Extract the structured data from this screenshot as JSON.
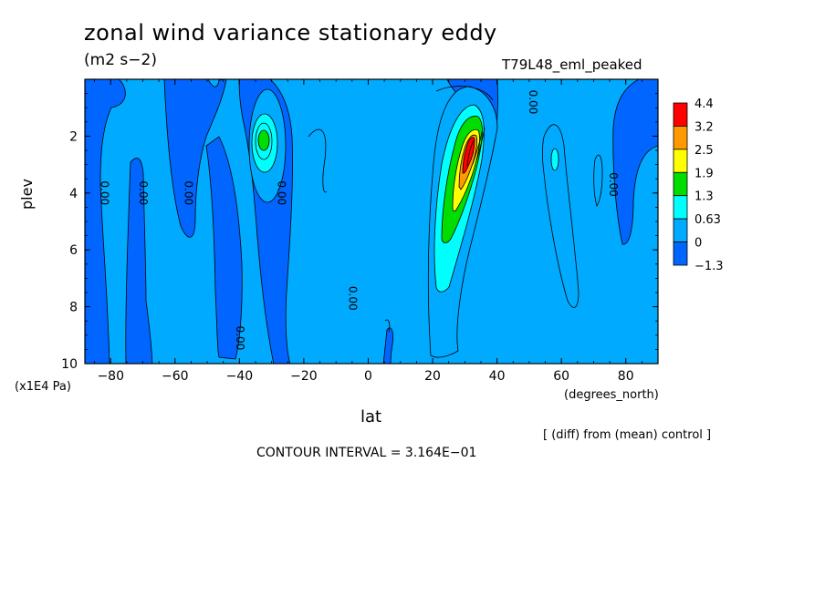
{
  "chart_data": {
    "type": "heatmap",
    "subtype": "filled-contour",
    "title": "zonal wind variance stationary eddy",
    "units": "(m2 s−2)",
    "run_name": "T79L48_eml_peaked",
    "xlabel": "lat",
    "x_units": "(degrees_north)",
    "ylabel": "plev",
    "y_units": "(x1E4 Pa)",
    "xlim": [
      -88,
      90
    ],
    "ylim": [
      10,
      0
    ],
    "x_ticks": [
      -80,
      -60,
      -40,
      -20,
      0,
      20,
      40,
      60,
      80
    ],
    "x_tick_labels": [
      "−80",
      "−60",
      "−40",
      "−20",
      "0",
      "20",
      "40",
      "60",
      "80"
    ],
    "y_ticks": [
      2,
      4,
      6,
      8,
      10
    ],
    "y_tick_labels": [
      "2",
      "4",
      "6",
      "8",
      "10"
    ],
    "colorbar": {
      "levels": [
        "4.4",
        "3.2",
        "2.5",
        "1.9",
        "1.3",
        "0.63",
        "0",
        "−1.3"
      ],
      "colors": [
        "#ff0000",
        "#ff9900",
        "#ffff00",
        "#00dd00",
        "#00ffff",
        "#00aaff",
        "#0066ff"
      ]
    },
    "contour_labels": [
      {
        "text": "0.00",
        "lat": -83,
        "plev": 4.0
      },
      {
        "text": "0.00",
        "lat": -71,
        "plev": 4.0
      },
      {
        "text": "0.00",
        "lat": -57,
        "plev": 4.0
      },
      {
        "text": "0.00",
        "lat": -28,
        "plev": 4.0
      },
      {
        "text": "0.00",
        "lat": -41,
        "plev": 9.1
      },
      {
        "text": "0.00",
        "lat": -6,
        "plev": 7.7
      },
      {
        "text": "0.00",
        "lat": 50,
        "plev": 0.8
      },
      {
        "text": "0.00",
        "lat": 75,
        "plev": 3.7
      }
    ],
    "features": [
      {
        "name": "southern midlatitude maximum",
        "lat": -34,
        "plev": 2.3,
        "max_value": 1.9
      },
      {
        "name": "northern subtropical jet maximum",
        "lat": 30,
        "plev": 2.8,
        "max_value": 4.4
      },
      {
        "name": "northern high-latitude cell",
        "lat": 58,
        "plev": 2.8,
        "max_value": 0.63
      }
    ],
    "grid": false,
    "legend_position": "right"
  },
  "footer": {
    "diff_note": "[ (diff) from (mean) control ]",
    "contour_interval": "CONTOUR INTERVAL = 3.164E−01"
  }
}
